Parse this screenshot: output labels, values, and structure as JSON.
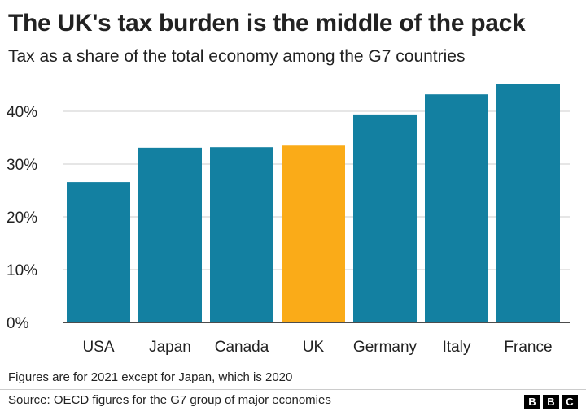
{
  "title": "The UK's tax burden is the middle of the pack",
  "subtitle": "Tax as a share of the total economy among the G7 countries",
  "note": "Figures are for 2021 except for Japan, which is 2020",
  "source": "Source: OECD figures for the G7 group of major economies",
  "logo": [
    "B",
    "B",
    "C"
  ],
  "colors": {
    "default": "#1380A1",
    "highlight": "#FAAB18",
    "grid": "#dddddd"
  },
  "chart_data": {
    "type": "bar",
    "title": "The UK's tax burden is the middle of the pack",
    "subtitle": "Tax as a share of the total economy among the G7 countries",
    "categories": [
      "USA",
      "Japan",
      "Canada",
      "UK",
      "Germany",
      "Italy",
      "France"
    ],
    "values": [
      26.6,
      33.1,
      33.2,
      33.5,
      39.4,
      43.2,
      45.1
    ],
    "highlight": "UK",
    "unit": "%",
    "ylim": [
      0,
      45
    ],
    "yticks": [
      0,
      10,
      20,
      30,
      40
    ],
    "ytick_labels": [
      "0%",
      "10%",
      "20%",
      "30%",
      "40%"
    ],
    "grid": true
  }
}
